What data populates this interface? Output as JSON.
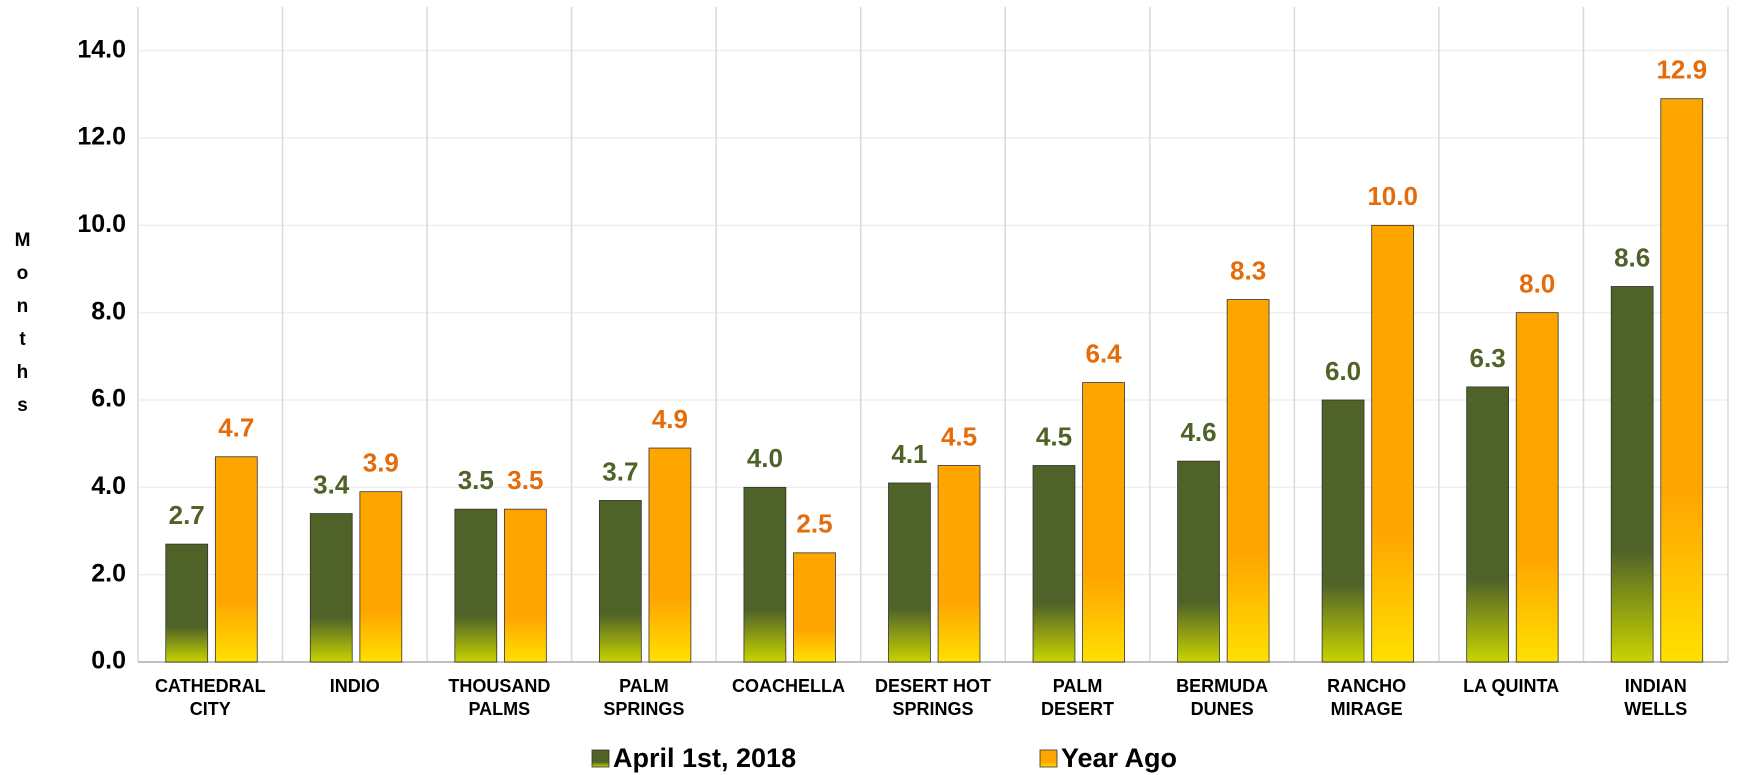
{
  "chart_data": {
    "type": "bar",
    "y_label": "Months",
    "categories": [
      [
        "CATHEDRAL",
        "CITY"
      ],
      [
        "INDIO"
      ],
      [
        "THOUSAND",
        "PALMS"
      ],
      [
        "PALM",
        "SPRINGS"
      ],
      [
        "COACHELLA"
      ],
      [
        "DESERT HOT",
        "SPRINGS"
      ],
      [
        "PALM",
        "DESERT"
      ],
      [
        "BERMUDA",
        "DUNES"
      ],
      [
        "RANCHO",
        "MIRAGE"
      ],
      [
        "LA QUINTA"
      ],
      [
        "INDIAN",
        "WELLS"
      ]
    ],
    "series": [
      {
        "name": "April 1st, 2018",
        "color": "#4f6228",
        "label_color": "#4f6228",
        "values": [
          2.7,
          3.4,
          3.5,
          3.7,
          4.0,
          4.1,
          4.5,
          4.6,
          6.0,
          6.3,
          8.6
        ],
        "value_labels": [
          "2.7",
          "3.4",
          "3.5",
          "3.7",
          "4.0",
          "4.1",
          "4.5",
          "4.6",
          "6.0",
          "6.3",
          "8.6"
        ]
      },
      {
        "name": "Year Ago",
        "color": "#ffa500",
        "label_color": "#e46c0a",
        "values": [
          4.7,
          3.9,
          3.5,
          4.9,
          2.5,
          4.5,
          6.4,
          8.3,
          10.0,
          8.0,
          12.9
        ],
        "value_labels": [
          "4.7",
          "3.9",
          "3.5",
          "4.9",
          "2.5",
          "4.5",
          "6.4",
          "8.3",
          "10.0",
          "8.0",
          "12.9"
        ]
      }
    ],
    "ylim": [
      0,
      15
    ],
    "yticks": [
      {
        "value": 0,
        "label": "0.0"
      },
      {
        "value": 2,
        "label": "2.0"
      },
      {
        "value": 4,
        "label": "4.0"
      },
      {
        "value": 6,
        "label": "6.0"
      },
      {
        "value": 8,
        "label": "8.0"
      },
      {
        "value": 10,
        "label": "10.0"
      },
      {
        "value": 12,
        "label": "12.0"
      },
      {
        "value": 14,
        "label": "14.0"
      }
    ],
    "grid": true,
    "legend": "bottom"
  }
}
